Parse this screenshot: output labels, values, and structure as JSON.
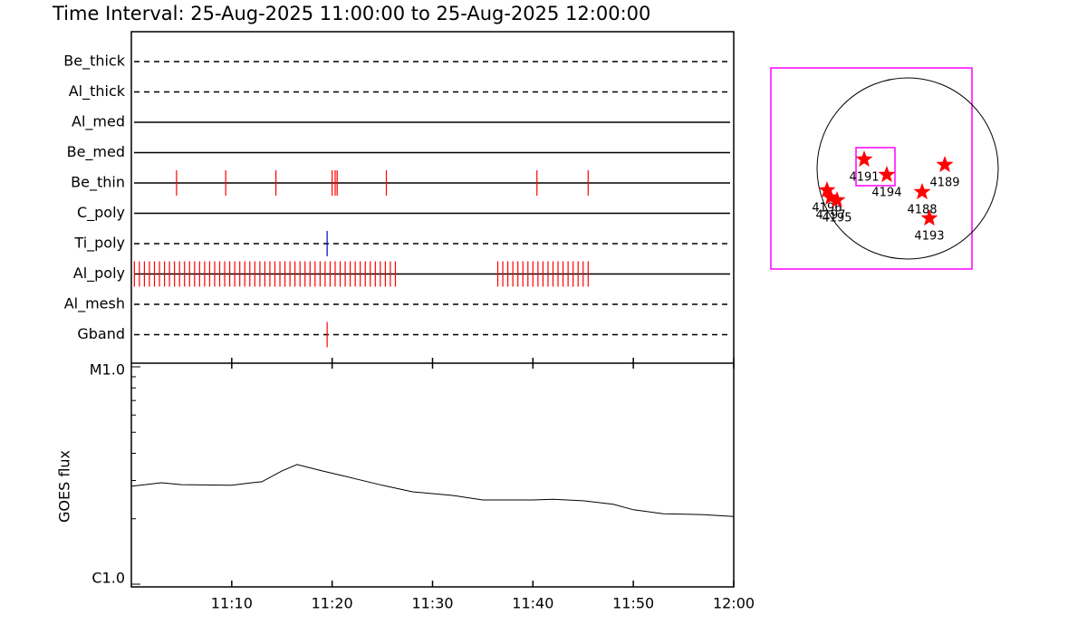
{
  "chart_data": [
    {
      "type": "timeline",
      "title": "Time Interval: 25-Aug-2025 11:00:00 to 25-Aug-2025 12:00:00",
      "xlim": [
        0,
        60
      ],
      "rows": [
        {
          "name": "Be_thick",
          "style": "dashed",
          "color": "#ff0000",
          "events": []
        },
        {
          "name": "Al_thick",
          "style": "dashed",
          "color": "#ff0000",
          "events": []
        },
        {
          "name": "Al_med",
          "style": "solid",
          "color": "#ff0000",
          "events": []
        },
        {
          "name": "Be_med",
          "style": "solid",
          "color": "#ff0000",
          "events": []
        },
        {
          "name": "Be_thin",
          "style": "solid",
          "color": "#ff0000",
          "events": [
            4.5,
            9.4,
            14.4,
            20.0,
            20.3,
            20.5,
            25.4,
            40.4,
            45.5
          ]
        },
        {
          "name": "C_poly",
          "style": "solid",
          "color": "#ff0000",
          "events": []
        },
        {
          "name": "Ti_poly",
          "style": "dashed",
          "color": "#0000cc",
          "events": [
            19.5
          ]
        },
        {
          "name": "Al_poly",
          "style": "solid",
          "color": "#ff0000",
          "events": [
            0.3,
            0.8,
            1.3,
            1.8,
            2.3,
            2.8,
            3.3,
            3.8,
            4.3,
            4.8,
            5.3,
            5.8,
            6.3,
            6.8,
            7.3,
            7.8,
            8.3,
            8.8,
            9.3,
            9.8,
            10.3,
            10.8,
            11.3,
            11.8,
            12.3,
            12.8,
            13.3,
            13.8,
            14.3,
            14.8,
            15.3,
            15.8,
            16.3,
            16.8,
            17.3,
            17.8,
            18.3,
            18.8,
            19.3,
            19.8,
            20.3,
            20.8,
            21.3,
            21.8,
            22.3,
            22.8,
            23.3,
            23.8,
            24.3,
            24.8,
            25.3,
            25.8,
            26.3,
            36.5,
            37.0,
            37.5,
            38.0,
            38.5,
            39.0,
            39.5,
            40.0,
            40.5,
            41.0,
            41.5,
            42.0,
            42.5,
            43.0,
            43.5,
            44.0,
            44.5,
            45.0,
            45.5
          ]
        },
        {
          "name": "Al_mesh",
          "style": "dashed",
          "color": "#ff0000",
          "events": []
        },
        {
          "name": "Gband",
          "style": "dashed",
          "color": "#ff0000",
          "events": [
            19.5
          ]
        }
      ]
    },
    {
      "type": "line",
      "ylabel": "GOES flux",
      "log_scale": true,
      "color": "#000000",
      "x": [
        0,
        3,
        5,
        10,
        12,
        13,
        15,
        16.5,
        19,
        21,
        25,
        28,
        32,
        35,
        40,
        42,
        45,
        48,
        50,
        53,
        57,
        60
      ],
      "values": [
        2.82e-06,
        2.93e-06,
        2.87e-06,
        2.85e-06,
        2.93e-06,
        2.96e-06,
        3.32e-06,
        3.55e-06,
        3.32e-06,
        3.16e-06,
        2.85e-06,
        2.66e-06,
        2.56e-06,
        2.44e-06,
        2.44e-06,
        2.46e-06,
        2.42e-06,
        2.33e-06,
        2.2e-06,
        2.11e-06,
        2.09e-06,
        2.05e-06
      ],
      "xlim": [
        0,
        60
      ],
      "xticks": [
        {
          "value": 10,
          "label": "11:10"
        },
        {
          "value": 20,
          "label": "11:20"
        },
        {
          "value": 30,
          "label": "11:30"
        },
        {
          "value": 40,
          "label": "11:40"
        },
        {
          "value": 50,
          "label": "11:50"
        },
        {
          "value": 60,
          "label": "12:00"
        }
      ],
      "ylim": [
        1e-06,
        1e-05
      ],
      "yticks": [
        {
          "value": 1e-05,
          "label": "M1.0"
        },
        {
          "value": 1e-06,
          "label": "C1.0"
        }
      ]
    },
    {
      "type": "scatter",
      "color": "#ff0000",
      "box_color": "#ff00ff",
      "xlim": [
        -1100,
        1100
      ],
      "ylim": [
        -1100,
        1100
      ],
      "labels": [
        "4191",
        "4194",
        "4189",
        "4188",
        "4193",
        "4196",
        "4197",
        "4195"
      ],
      "x": [
        -79,
        168,
        803,
        555,
        634,
        -486,
        -446,
        -377
      ],
      "y": [
        99,
        -69,
        40,
        -258,
        -545,
        -238,
        -317,
        -347
      ]
    }
  ]
}
